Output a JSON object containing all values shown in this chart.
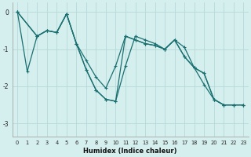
{
  "xlabel": "Humidex (Indice chaleur)",
  "bg_color": "#d5eeee",
  "grid_color": "#b8d8d8",
  "line_color": "#1a7070",
  "xlim": [
    -0.5,
    23.5
  ],
  "ylim": [
    -3.35,
    0.25
  ],
  "yticks": [
    0,
    -1,
    -2,
    -3
  ],
  "xticks": [
    0,
    1,
    2,
    3,
    4,
    5,
    6,
    7,
    8,
    9,
    10,
    11,
    12,
    13,
    14,
    15,
    16,
    17,
    18,
    19,
    20,
    21,
    22,
    23
  ],
  "line1_x": [
    0,
    1,
    2,
    3,
    4,
    5,
    6,
    7,
    8,
    9,
    10,
    11,
    12,
    13,
    14,
    15,
    16,
    17,
    18,
    19,
    20,
    21,
    22,
    23
  ],
  "line1_y": [
    0.0,
    -1.6,
    -0.65,
    -0.5,
    -0.55,
    -0.05,
    -0.85,
    -1.55,
    -2.1,
    -2.35,
    -2.4,
    -0.65,
    -0.75,
    -0.85,
    -0.9,
    -1.0,
    -0.75,
    -0.95,
    -1.5,
    -1.65,
    -2.35,
    -2.5,
    -2.5,
    -2.5
  ],
  "line2_x": [
    0,
    2,
    3,
    4,
    5,
    6,
    7,
    8,
    9,
    10,
    11,
    12,
    13,
    14,
    15,
    16,
    17,
    18,
    19,
    20,
    21,
    22,
    23
  ],
  "line2_y": [
    0.0,
    -0.65,
    -0.5,
    -0.55,
    -0.05,
    -0.85,
    -1.3,
    -1.75,
    -2.05,
    -1.45,
    -0.65,
    -0.75,
    -0.85,
    -0.9,
    -1.0,
    -0.75,
    -1.2,
    -1.5,
    -1.65,
    -2.35,
    -2.5,
    -2.5,
    -2.5
  ],
  "line3_x": [
    0,
    2,
    3,
    4,
    5,
    6,
    7,
    8,
    9,
    10,
    11,
    12,
    13,
    14,
    15,
    16,
    17,
    18,
    19,
    20,
    21,
    22,
    23
  ],
  "line3_y": [
    0.0,
    -0.65,
    -0.5,
    -0.55,
    -0.05,
    -0.85,
    -1.55,
    -2.1,
    -2.35,
    -2.4,
    -1.45,
    -0.65,
    -0.75,
    -0.85,
    -1.0,
    -0.75,
    -1.2,
    -1.5,
    -1.95,
    -2.35,
    -2.5,
    -2.5,
    -2.5
  ]
}
